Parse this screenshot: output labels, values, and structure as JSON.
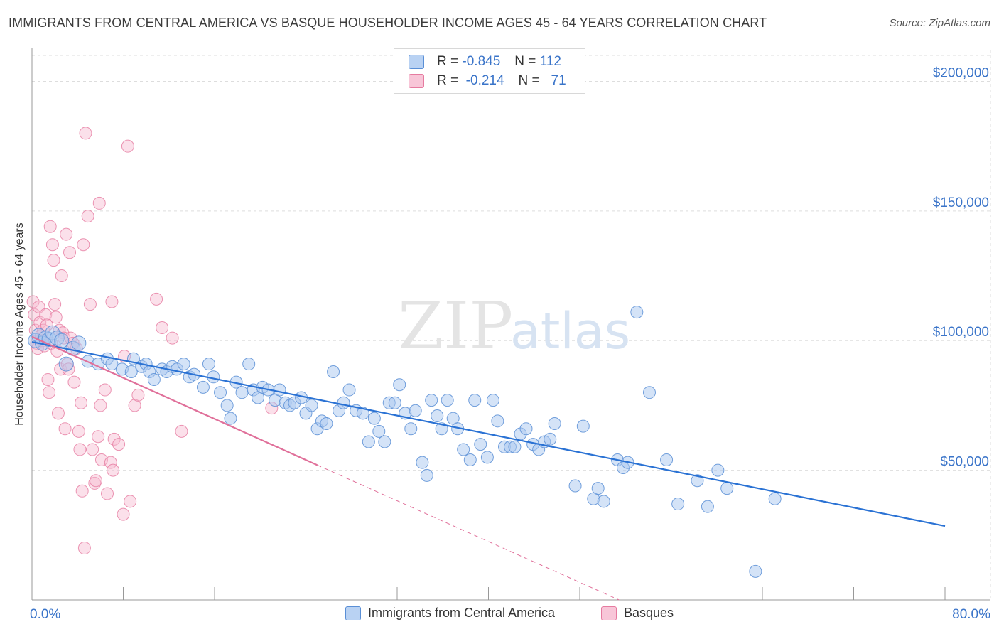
{
  "header": {
    "title": "IMMIGRANTS FROM CENTRAL AMERICA VS BASQUE HOUSEHOLDER INCOME AGES 45 - 64 YEARS CORRELATION CHART",
    "source": "Source: ZipAtlas.com"
  },
  "watermark": {
    "zip": "ZIP",
    "atlas": "atlas"
  },
  "legend": {
    "rows": [
      {
        "r_label": "R =",
        "r_value": "-0.845",
        "n_label": "N =",
        "n_value": "112"
      },
      {
        "r_label": "R =",
        "r_value": "-0.214",
        "n_label": "N =",
        "n_value": "71"
      }
    ]
  },
  "bottom_legend": [
    "Immigrants from Central America",
    "Basques"
  ],
  "colors": {
    "blue_fill": "#a9c8f0",
    "blue_stroke": "#5a8fd6",
    "blue_line": "#2a72d4",
    "pink_fill": "#f6bad0",
    "pink_stroke": "#e67ba0",
    "pink_line": "#e0709a",
    "tick_text": "#3a74c9",
    "grid": "#dddddd"
  },
  "chart_data": {
    "type": "scatter",
    "title": "IMMIGRANTS FROM CENTRAL AMERICA VS BASQUE HOUSEHOLDER INCOME AGES 45 - 64 YEARS CORRELATION CHART",
    "xlabel": "",
    "ylabel": "Householder Income Ages 45 - 64 years",
    "xlim": [
      0,
      80
    ],
    "ylim": [
      0,
      210000
    ],
    "x_tick_labels": [
      "0.0%",
      "80.0%"
    ],
    "y_ticks": [
      50000,
      100000,
      150000,
      200000
    ],
    "y_tick_labels": [
      "$50,000",
      "$100,000",
      "$150,000",
      "$200,000"
    ],
    "grid": true,
    "series": [
      {
        "name": "Immigrants from Central America",
        "r": -0.845,
        "n": 112,
        "trend": {
          "x": [
            0,
            80
          ],
          "y": [
            99500,
            28500
          ]
        },
        "points": [
          [
            0.3,
            100000
          ],
          [
            0.6,
            102000
          ],
          [
            0.9,
            99000
          ],
          [
            1.2,
            101000
          ],
          [
            1.5,
            100500
          ],
          [
            1.8,
            103000
          ],
          [
            2.2,
            101000
          ],
          [
            2.6,
            100000
          ],
          [
            3.0,
            91000
          ],
          [
            3.6,
            97000
          ],
          [
            4.1,
            99000
          ],
          [
            4.9,
            92000
          ],
          [
            5.8,
            91000
          ],
          [
            6.6,
            93000
          ],
          [
            7.0,
            91000
          ],
          [
            7.9,
            89000
          ],
          [
            8.7,
            88000
          ],
          [
            8.9,
            93000
          ],
          [
            9.6,
            90000
          ],
          [
            10.0,
            91000
          ],
          [
            10.3,
            88000
          ],
          [
            10.7,
            85000
          ],
          [
            11.4,
            89000
          ],
          [
            11.8,
            88000
          ],
          [
            12.3,
            90000
          ],
          [
            12.7,
            89000
          ],
          [
            13.3,
            91000
          ],
          [
            13.8,
            86000
          ],
          [
            14.2,
            87000
          ],
          [
            15.0,
            82000
          ],
          [
            15.5,
            91000
          ],
          [
            15.9,
            86000
          ],
          [
            16.5,
            80000
          ],
          [
            17.1,
            75000
          ],
          [
            17.4,
            70000
          ],
          [
            17.9,
            84000
          ],
          [
            18.4,
            80000
          ],
          [
            19.0,
            91000
          ],
          [
            19.4,
            81000
          ],
          [
            19.8,
            78000
          ],
          [
            20.2,
            82000
          ],
          [
            20.7,
            81000
          ],
          [
            21.3,
            77000
          ],
          [
            21.7,
            81000
          ],
          [
            22.2,
            76000
          ],
          [
            22.6,
            75000
          ],
          [
            23.0,
            76000
          ],
          [
            23.6,
            78000
          ],
          [
            24.0,
            72000
          ],
          [
            24.5,
            75000
          ],
          [
            25.0,
            66000
          ],
          [
            25.4,
            69000
          ],
          [
            25.8,
            68000
          ],
          [
            26.4,
            88000
          ],
          [
            26.9,
            73000
          ],
          [
            27.3,
            76000
          ],
          [
            27.8,
            81000
          ],
          [
            28.4,
            73000
          ],
          [
            29.0,
            72000
          ],
          [
            29.5,
            61000
          ],
          [
            30.0,
            70000
          ],
          [
            30.4,
            65000
          ],
          [
            30.9,
            61000
          ],
          [
            31.3,
            76000
          ],
          [
            31.8,
            76000
          ],
          [
            32.2,
            83000
          ],
          [
            32.7,
            72000
          ],
          [
            33.2,
            66000
          ],
          [
            33.6,
            73000
          ],
          [
            34.2,
            53000
          ],
          [
            34.6,
            48000
          ],
          [
            35.0,
            77000
          ],
          [
            35.5,
            71000
          ],
          [
            35.9,
            66000
          ],
          [
            36.4,
            77000
          ],
          [
            36.9,
            70000
          ],
          [
            37.3,
            66000
          ],
          [
            37.8,
            58000
          ],
          [
            38.4,
            54000
          ],
          [
            38.8,
            77000
          ],
          [
            39.3,
            60000
          ],
          [
            39.9,
            55000
          ],
          [
            40.4,
            77000
          ],
          [
            40.8,
            69000
          ],
          [
            41.4,
            59000
          ],
          [
            41.9,
            59000
          ],
          [
            42.3,
            59000
          ],
          [
            42.8,
            64000
          ],
          [
            43.3,
            66000
          ],
          [
            43.9,
            60000
          ],
          [
            44.4,
            58000
          ],
          [
            44.9,
            61000
          ],
          [
            45.4,
            62000
          ],
          [
            45.8,
            68000
          ],
          [
            47.6,
            44000
          ],
          [
            48.3,
            67000
          ],
          [
            49.2,
            39000
          ],
          [
            49.6,
            43000
          ],
          [
            50.1,
            38000
          ],
          [
            51.3,
            54000
          ],
          [
            51.8,
            51000
          ],
          [
            52.2,
            53000
          ],
          [
            53.0,
            111000
          ],
          [
            54.1,
            80000
          ],
          [
            55.6,
            54000
          ],
          [
            56.6,
            37000
          ],
          [
            58.3,
            46000
          ],
          [
            59.2,
            36000
          ],
          [
            60.1,
            50000
          ],
          [
            60.9,
            43000
          ],
          [
            63.4,
            11000
          ],
          [
            65.1,
            39000
          ]
        ]
      },
      {
        "name": "Basques",
        "r": -0.214,
        "n": 71,
        "trend_solid": {
          "x": [
            0,
            25
          ],
          "y": [
            101500,
            52000
          ]
        },
        "trend_dashed": {
          "x": [
            25,
            55
          ],
          "y": [
            52000,
            -7000
          ]
        },
        "points": [
          [
            0.1,
            115000
          ],
          [
            0.2,
            110000
          ],
          [
            0.3,
            104000
          ],
          [
            0.4,
            99000
          ],
          [
            0.5,
            97000
          ],
          [
            0.6,
            113000
          ],
          [
            0.7,
            107000
          ],
          [
            0.8,
            102000
          ],
          [
            0.9,
            100000
          ],
          [
            1.0,
            104000
          ],
          [
            1.1,
            98000
          ],
          [
            1.2,
            110000
          ],
          [
            1.3,
            106000
          ],
          [
            1.4,
            85000
          ],
          [
            1.5,
            80000
          ],
          [
            1.6,
            144000
          ],
          [
            1.7,
            99000
          ],
          [
            1.8,
            137000
          ],
          [
            1.9,
            131000
          ],
          [
            2.0,
            114000
          ],
          [
            2.1,
            109000
          ],
          [
            2.2,
            96000
          ],
          [
            2.3,
            72000
          ],
          [
            2.4,
            104000
          ],
          [
            2.5,
            89000
          ],
          [
            2.6,
            125000
          ],
          [
            2.7,
            103000
          ],
          [
            2.8,
            101000
          ],
          [
            2.9,
            66000
          ],
          [
            3.0,
            141000
          ],
          [
            3.1,
            91000
          ],
          [
            3.2,
            89000
          ],
          [
            3.3,
            134000
          ],
          [
            3.4,
            101000
          ],
          [
            3.6,
            99000
          ],
          [
            3.7,
            84000
          ],
          [
            3.9,
            97000
          ],
          [
            4.1,
            65000
          ],
          [
            4.2,
            58000
          ],
          [
            4.3,
            76000
          ],
          [
            4.4,
            42000
          ],
          [
            4.5,
            137000
          ],
          [
            4.6,
            20000
          ],
          [
            4.7,
            180000
          ],
          [
            4.9,
            148000
          ],
          [
            5.1,
            114000
          ],
          [
            5.3,
            58000
          ],
          [
            5.5,
            45000
          ],
          [
            5.6,
            46000
          ],
          [
            5.8,
            63000
          ],
          [
            5.9,
            153000
          ],
          [
            6.0,
            75000
          ],
          [
            6.1,
            54000
          ],
          [
            6.4,
            81000
          ],
          [
            6.6,
            41000
          ],
          [
            6.9,
            53000
          ],
          [
            7.0,
            115000
          ],
          [
            7.1,
            50000
          ],
          [
            7.2,
            62000
          ],
          [
            7.6,
            60000
          ],
          [
            8.0,
            33000
          ],
          [
            8.1,
            94000
          ],
          [
            8.4,
            175000
          ],
          [
            8.6,
            38000
          ],
          [
            9.0,
            75000
          ],
          [
            9.3,
            79000
          ],
          [
            10.9,
            116000
          ],
          [
            11.4,
            105000
          ],
          [
            12.3,
            101000
          ],
          [
            13.1,
            65000
          ],
          [
            21.0,
            74000
          ]
        ]
      }
    ]
  }
}
